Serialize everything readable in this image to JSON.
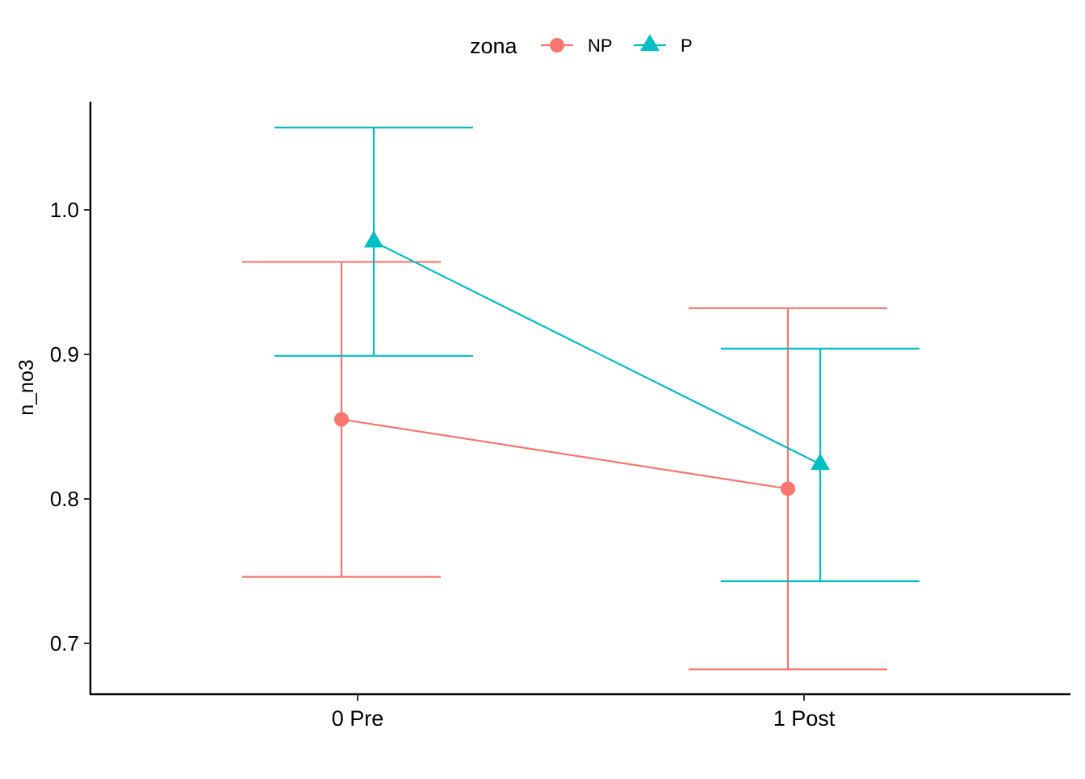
{
  "chart_data": {
    "type": "line",
    "xlabel": "",
    "ylabel": "n_no3",
    "categories": [
      "0 Pre",
      "1 Post"
    ],
    "ylim": [
      0.68,
      1.07
    ],
    "yticks": [
      0.7,
      0.8,
      0.9,
      1.0
    ],
    "ytick_labels": [
      "0.7",
      "0.8",
      "0.9",
      "1.0"
    ],
    "grid": false,
    "legend": {
      "title": "zona",
      "position": "top",
      "entries": [
        "NP",
        "P"
      ]
    },
    "series": [
      {
        "name": "NP",
        "color": "#F8766D",
        "marker": "circle",
        "values": [
          0.855,
          0.807
        ],
        "lower": [
          0.746,
          0.682
        ],
        "upper": [
          0.964,
          0.932
        ]
      },
      {
        "name": "P",
        "color": "#00BFC4",
        "marker": "triangle",
        "values": [
          0.978,
          0.824
        ],
        "lower": [
          0.899,
          0.743
        ],
        "upper": [
          1.057,
          0.904
        ]
      }
    ]
  }
}
